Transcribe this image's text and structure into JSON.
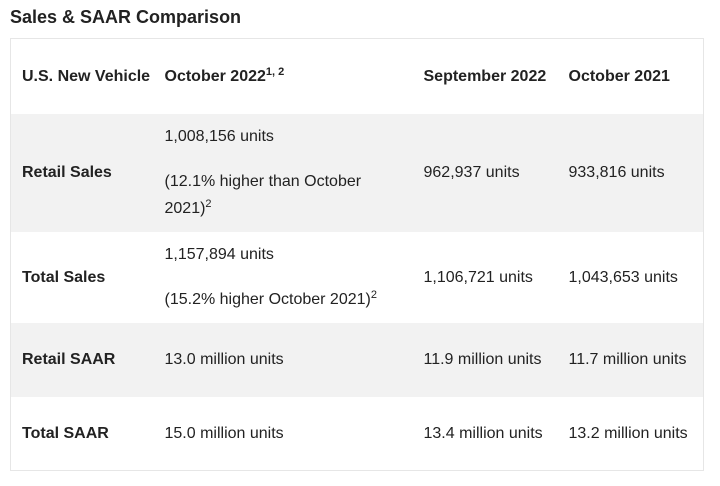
{
  "title": "Sales & SAAR Comparison",
  "header": {
    "col0": "U.S. New Vehicle",
    "col1": "October 2022",
    "col1_sup": "1, 2",
    "col2": "September 2022",
    "col3": "October 2021"
  },
  "rows": [
    {
      "label": "Retail Sales",
      "oct2022": "1,008,156 units",
      "oct2022_note": "(12.1% higher than October 2021)",
      "oct2022_note_sup": "2",
      "sep2022": "962,937 units",
      "oct2021": "933,816 units"
    },
    {
      "label": "Total Sales",
      "oct2022": "1,157,894 units",
      "oct2022_note": "(15.2% higher October 2021)",
      "oct2022_note_sup": "2",
      "sep2022": "1,106,721 units",
      "oct2021": "1,043,653 units"
    },
    {
      "label": "Retail SAAR",
      "oct2022": "13.0 million units",
      "sep2022": "11.9 million units",
      "oct2021": "11.7 million units"
    },
    {
      "label": "Total SAAR",
      "oct2022": "15.0 million units",
      "sep2022": "13.4 million units",
      "oct2021": "13.2 million units"
    }
  ]
}
